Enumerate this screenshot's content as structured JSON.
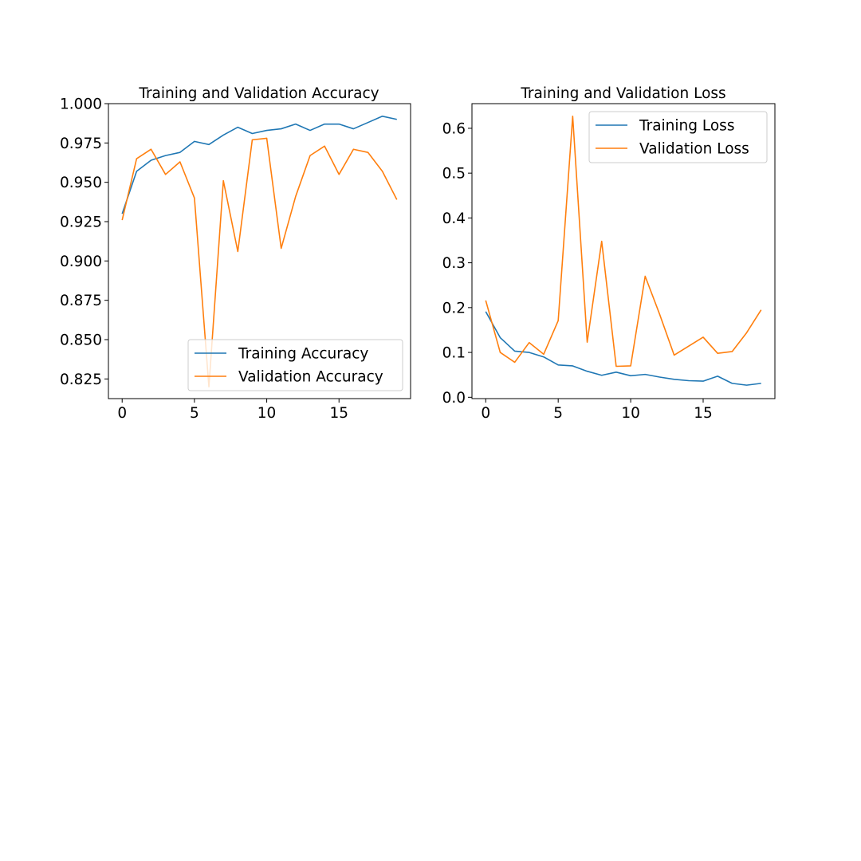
{
  "colors": {
    "training": "#1f77b4",
    "validation": "#ff7f0e",
    "axes": "#000000",
    "legend_border": "#cccccc"
  },
  "chart_data": [
    {
      "type": "line",
      "title": "Training and Validation Accuracy",
      "xlabel": "",
      "ylabel": "",
      "x": [
        0,
        1,
        2,
        3,
        4,
        5,
        6,
        7,
        8,
        9,
        10,
        11,
        12,
        13,
        14,
        15,
        16,
        17,
        18,
        19
      ],
      "xlim": [
        -0.95,
        19.95
      ],
      "ylim": [
        0.8125,
        1.0
      ],
      "xticks": [
        0,
        5,
        10,
        15
      ],
      "xtick_labels": [
        "0",
        "5",
        "10",
        "15"
      ],
      "yticks": [
        0.825,
        0.85,
        0.875,
        0.9,
        0.925,
        0.95,
        0.975,
        1.0
      ],
      "ytick_labels": [
        "0.825",
        "0.850",
        "0.875",
        "0.900",
        "0.925",
        "0.950",
        "0.975",
        "1.000"
      ],
      "grid": false,
      "legend_position": "lower right",
      "series": [
        {
          "name": "Training Accuracy",
          "color": "#1f77b4",
          "values": [
            0.93,
            0.957,
            0.964,
            0.967,
            0.969,
            0.976,
            0.974,
            0.98,
            0.985,
            0.981,
            0.983,
            0.984,
            0.987,
            0.983,
            0.987,
            0.987,
            0.984,
            0.988,
            0.992,
            0.99
          ]
        },
        {
          "name": "Validation Accuracy",
          "color": "#ff7f0e",
          "values": [
            0.926,
            0.965,
            0.971,
            0.955,
            0.963,
            0.94,
            0.82,
            0.951,
            0.906,
            0.977,
            0.978,
            0.908,
            0.941,
            0.967,
            0.973,
            0.955,
            0.971,
            0.969,
            0.957,
            0.939
          ]
        }
      ]
    },
    {
      "type": "line",
      "title": "Training and Validation Loss",
      "xlabel": "",
      "ylabel": "",
      "x": [
        0,
        1,
        2,
        3,
        4,
        5,
        6,
        7,
        8,
        9,
        10,
        11,
        12,
        13,
        14,
        15,
        16,
        17,
        18,
        19
      ],
      "xlim": [
        -0.95,
        19.95
      ],
      "ylim": [
        -0.003,
        0.655
      ],
      "xticks": [
        0,
        5,
        10,
        15
      ],
      "xtick_labels": [
        "0",
        "5",
        "10",
        "15"
      ],
      "yticks": [
        0.0,
        0.1,
        0.2,
        0.3,
        0.4,
        0.5,
        0.6
      ],
      "ytick_labels": [
        "0.0",
        "0.1",
        "0.2",
        "0.3",
        "0.4",
        "0.5",
        "0.6"
      ],
      "grid": false,
      "legend_position": "upper right",
      "series": [
        {
          "name": "Training Loss",
          "color": "#1f77b4",
          "values": [
            0.191,
            0.133,
            0.103,
            0.1,
            0.09,
            0.072,
            0.07,
            0.058,
            0.049,
            0.056,
            0.048,
            0.051,
            0.045,
            0.04,
            0.037,
            0.036,
            0.047,
            0.031,
            0.027,
            0.031
          ]
        },
        {
          "name": "Validation Loss",
          "color": "#ff7f0e",
          "values": [
            0.216,
            0.1,
            0.078,
            0.122,
            0.096,
            0.171,
            0.627,
            0.123,
            0.348,
            0.069,
            0.07,
            0.27,
            0.185,
            0.094,
            0.114,
            0.134,
            0.098,
            0.102,
            0.144,
            0.195
          ]
        }
      ]
    }
  ]
}
